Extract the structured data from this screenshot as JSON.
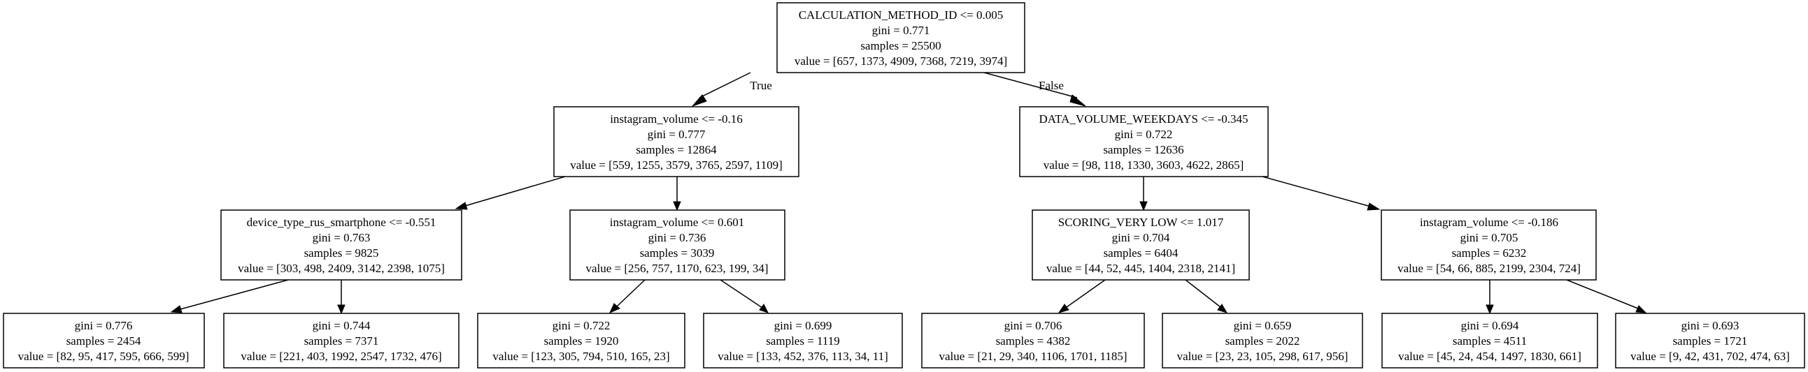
{
  "tree": {
    "nodes": {
      "n0": {
        "split": "CALCULATION_METHOD_ID <= 0.005",
        "gini": "gini = 0.771",
        "samples": "samples = 25500",
        "value": "value = [657, 1373, 4909, 7368, 7219, 3974]"
      },
      "n1": {
        "split": "instagram_volume <= -0.16",
        "gini": "gini = 0.777",
        "samples": "samples = 12864",
        "value": "value = [559, 1255, 3579, 3765, 2597, 1109]"
      },
      "n2": {
        "split": "DATA_VOLUME_WEEKDAYS <= -0.345",
        "gini": "gini = 0.722",
        "samples": "samples = 12636",
        "value": "value = [98, 118, 1330, 3603, 4622, 2865]"
      },
      "n3": {
        "split": "device_type_rus_smartphone <= -0.551",
        "gini": "gini = 0.763",
        "samples": "samples = 9825",
        "value": "value = [303, 498, 2409, 3142, 2398, 1075]"
      },
      "n4": {
        "split": "instagram_volume <= 0.601",
        "gini": "gini = 0.736",
        "samples": "samples = 3039",
        "value": "value = [256, 757, 1170, 623, 199, 34]"
      },
      "n5": {
        "split": "SCORING_VERY LOW <= 1.017",
        "gini": "gini = 0.704",
        "samples": "samples = 6404",
        "value": "value = [44, 52, 445, 1404, 2318, 2141]"
      },
      "n6": {
        "split": "instagram_volume <= -0.186",
        "gini": "gini = 0.705",
        "samples": "samples = 6232",
        "value": "value = [54, 66, 885, 2199, 2304, 724]"
      },
      "n7": {
        "gini": "gini = 0.776",
        "samples": "samples = 2454",
        "value": "value = [82, 95, 417, 595, 666, 599]"
      },
      "n8": {
        "gini": "gini = 0.744",
        "samples": "samples = 7371",
        "value": "value = [221, 403, 1992, 2547, 1732, 476]"
      },
      "n9": {
        "gini": "gini = 0.722",
        "samples": "samples = 1920",
        "value": "value = [123, 305, 794, 510, 165, 23]"
      },
      "n10": {
        "gini": "gini = 0.699",
        "samples": "samples = 1119",
        "value": "value = [133, 452, 376, 113, 34, 11]"
      },
      "n11": {
        "gini": "gini = 0.706",
        "samples": "samples = 4382",
        "value": "value = [21, 29, 340, 1106, 1701, 1185]"
      },
      "n12": {
        "gini": "gini = 0.659",
        "samples": "samples = 2022",
        "value": "value = [23, 23, 105, 298, 617, 956]"
      },
      "n13": {
        "gini": "gini = 0.694",
        "samples": "samples = 4511",
        "value": "value = [45, 24, 454, 1497, 1830, 661]"
      },
      "n14": {
        "gini": "gini = 0.693",
        "samples": "samples = 1721",
        "value": "value = [9, 42, 431, 702, 474, 63]"
      }
    },
    "edge_labels": {
      "true": "True",
      "false": "False"
    }
  }
}
